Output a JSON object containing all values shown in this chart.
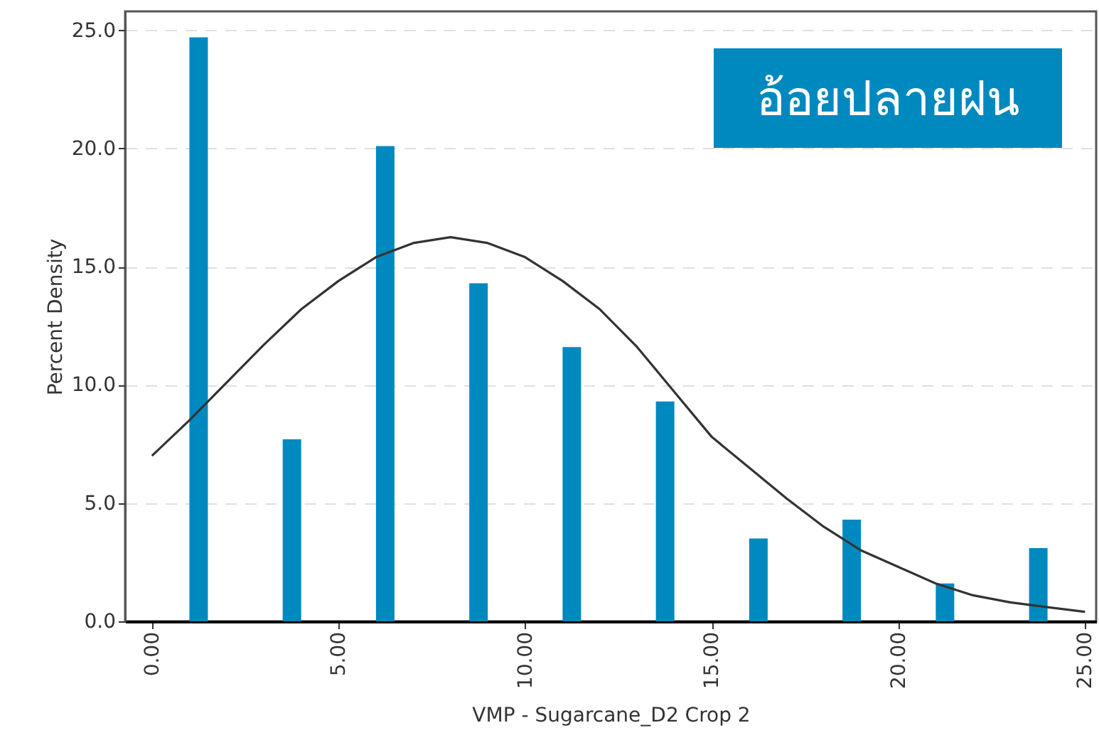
{
  "chart_data": {
    "type": "bar",
    "xlabel": "VMP - Sugarcane_D2 Crop 2",
    "ylabel": "Percent Density",
    "annotations": [
      "อ้อยปลายฝน"
    ],
    "x": [
      1.25,
      3.75,
      6.25,
      8.75,
      11.25,
      13.75,
      16.25,
      18.75,
      21.25,
      23.75
    ],
    "series": [
      {
        "color": "#0089bf",
        "values": [
          24.7,
          7.7,
          20.1,
          14.3,
          11.6,
          9.3,
          3.5,
          4.3,
          1.6,
          3.1
        ]
      },
      {
        "type": "line",
        "color": "#333333",
        "x": [
          0,
          1,
          2,
          3,
          4,
          5,
          6,
          7,
          8,
          9,
          10,
          11,
          12,
          13,
          14,
          15,
          16,
          17,
          18,
          19,
          20,
          21,
          22,
          23,
          24,
          25
        ],
        "values": [
          7.0,
          8.5,
          10.1,
          11.7,
          13.2,
          14.4,
          15.4,
          16.0,
          16.25,
          16.0,
          15.4,
          14.4,
          13.2,
          11.6,
          9.7,
          7.8,
          6.5,
          5.2,
          4.0,
          3.0,
          2.3,
          1.6,
          1.1,
          0.8,
          0.6,
          0.4
        ]
      }
    ],
    "xlim": [
      -0.72,
      25.3
    ],
    "ylim": [
      0,
      25.8
    ],
    "xticks": [
      {
        "value": 0,
        "label": "0.00"
      },
      {
        "value": 5,
        "label": "5.00"
      },
      {
        "value": 10,
        "label": "10.00"
      },
      {
        "value": 15,
        "label": "15.00"
      },
      {
        "value": 20,
        "label": "20.00"
      },
      {
        "value": 25,
        "label": "25.00"
      }
    ],
    "yticks": [
      {
        "value": 0,
        "label": "0.0"
      },
      {
        "value": 5,
        "label": "5.0"
      },
      {
        "value": 10,
        "label": "10.0"
      },
      {
        "value": 15,
        "label": "15.0"
      },
      {
        "value": 20,
        "label": "20.0"
      },
      {
        "value": 25,
        "label": "25.0"
      }
    ],
    "grid": "y"
  }
}
